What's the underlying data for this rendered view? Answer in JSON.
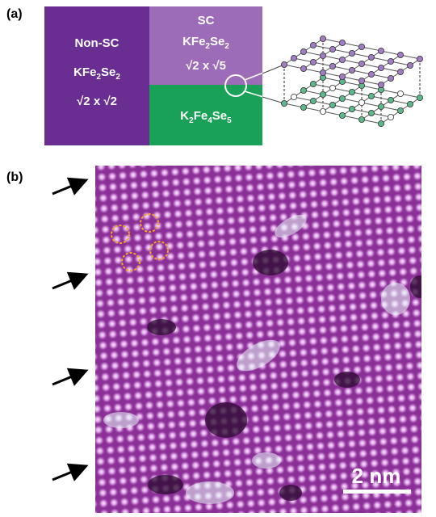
{
  "panel_a": {
    "label": "(a)",
    "non_sc": {
      "name": "Non-SC",
      "formula": [
        "KFe",
        "2",
        "Se",
        "2"
      ],
      "cell": [
        "√2",
        " x ",
        "√2"
      ]
    },
    "sc": {
      "name": "SC",
      "formula": [
        "KFe",
        "2",
        "Se",
        "2"
      ],
      "cell": [
        "√2",
        " x ",
        "√5"
      ]
    },
    "vacancy": {
      "formula": [
        "K",
        "2",
        "Fe",
        "4",
        "Se",
        "5"
      ]
    }
  },
  "panel_b": {
    "label": "(b)",
    "scale_bar": "2 nm"
  }
}
